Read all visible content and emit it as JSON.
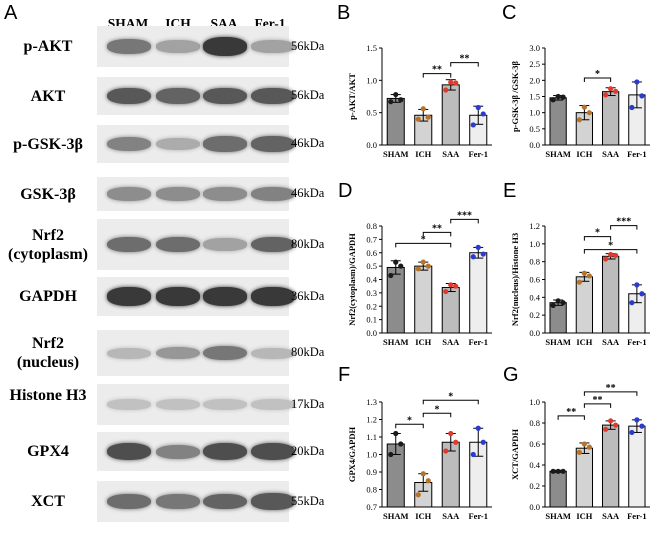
{
  "panel_letters": [
    "A",
    "B",
    "C",
    "D",
    "E",
    "F",
    "G"
  ],
  "western_blot": {
    "lanes": [
      "SHAM",
      "ICH",
      "SAA",
      "Fer-1"
    ],
    "rows": [
      {
        "protein": "p-AKT",
        "kda": "56kDa",
        "intensity": [
          0.55,
          0.35,
          0.85,
          0.35
        ]
      },
      {
        "protein": "AKT",
        "kda": "56kDa",
        "intensity": [
          0.7,
          0.65,
          0.7,
          0.7
        ]
      },
      {
        "protein": "p-GSK-3β",
        "kda": "46kDa",
        "intensity": [
          0.5,
          0.3,
          0.6,
          0.65
        ]
      },
      {
        "protein": "GSK-3β",
        "kda": "46kDa",
        "intensity": [
          0.45,
          0.45,
          0.45,
          0.5
        ]
      },
      {
        "protein": "Nrf2 (cytoplasm)",
        "kda": "80kDa",
        "intensity": [
          0.6,
          0.6,
          0.35,
          0.65
        ]
      },
      {
        "protein": "GAPDH",
        "kda": "36kDa",
        "intensity": [
          0.85,
          0.85,
          0.85,
          0.85
        ]
      },
      {
        "protein": "Nrf2 (nucleus)",
        "kda": "80kDa",
        "intensity": [
          0.25,
          0.4,
          0.55,
          0.25
        ]
      },
      {
        "protein": "Histone H3",
        "kda": "17kDa",
        "intensity": [
          0.2,
          0.2,
          0.2,
          0.2
        ]
      },
      {
        "protein": "GPX4",
        "kda": "20kDa",
        "intensity": [
          0.75,
          0.5,
          0.75,
          0.75
        ]
      },
      {
        "protein": "XCT",
        "kda": "55kDa",
        "intensity": [
          0.6,
          0.55,
          0.65,
          0.7
        ]
      }
    ]
  },
  "group_colors": {
    "bar_fills": [
      "#8c8c8c",
      "#d3d3d3",
      "#bcbcbc",
      "#eeeeee"
    ],
    "dot_colors": [
      "#1a1a1a",
      "#b5742a",
      "#e03a2e",
      "#2b3bd0"
    ]
  },
  "chart_data": [
    {
      "panel": "B",
      "type": "bar",
      "categories": [
        "SHAM",
        "ICH",
        "SAA",
        "Fer-1"
      ],
      "values": [
        0.72,
        0.46,
        0.93,
        0.46
      ],
      "errors": [
        0.06,
        0.09,
        0.08,
        0.14
      ],
      "points": [
        [
          0.67,
          0.78,
          0.7
        ],
        [
          0.4,
          0.56,
          0.43
        ],
        [
          0.85,
          0.97,
          0.96
        ],
        [
          0.31,
          0.58,
          0.48
        ]
      ],
      "ylabel": "p-AKT/AKT",
      "ylim": [
        0,
        1.5
      ],
      "yticks": [
        "0.0",
        "0.5",
        "1.0",
        "1.5"
      ],
      "brackets": [
        {
          "from": 1,
          "to": 2,
          "label": "**"
        },
        {
          "from": 2,
          "to": 3,
          "label": "**"
        }
      ]
    },
    {
      "panel": "C",
      "type": "bar",
      "categories": [
        "SHAM",
        "ICH",
        "SAA",
        "Fer-1"
      ],
      "values": [
        1.46,
        1.0,
        1.65,
        1.55
      ],
      "errors": [
        0.07,
        0.22,
        0.12,
        0.4
      ],
      "points": [
        [
          1.4,
          1.5,
          1.48
        ],
        [
          0.78,
          1.17,
          1.0
        ],
        [
          1.55,
          1.74,
          1.66
        ],
        [
          1.16,
          1.95,
          1.52
        ]
      ],
      "ylabel": "p-GSK-3β /GSK-3β",
      "ylim": [
        0,
        3.0
      ],
      "yticks": [
        "0.0",
        "0.5",
        "1.0",
        "1.5",
        "2.0",
        "2.5",
        "3.0"
      ],
      "brackets": [
        {
          "from": 1,
          "to": 2,
          "label": "*"
        }
      ]
    },
    {
      "panel": "D",
      "type": "bar",
      "categories": [
        "SHAM",
        "ICH",
        "SAA",
        "Fer-1"
      ],
      "values": [
        0.49,
        0.5,
        0.34,
        0.6
      ],
      "errors": [
        0.05,
        0.03,
        0.03,
        0.04
      ],
      "points": [
        [
          0.43,
          0.53,
          0.5
        ],
        [
          0.48,
          0.53,
          0.5
        ],
        [
          0.31,
          0.36,
          0.35
        ],
        [
          0.57,
          0.64,
          0.59
        ]
      ],
      "ylabel": "Nrf2(cytoplasm)/GAPDH",
      "ylim": [
        0,
        0.8
      ],
      "yticks": [
        "0.0",
        "0.1",
        "0.2",
        "0.3",
        "0.4",
        "0.5",
        "0.6",
        "0.7",
        "0.8"
      ],
      "brackets": [
        {
          "from": 0,
          "to": 2,
          "label": "*"
        },
        {
          "from": 1,
          "to": 2,
          "label": "**"
        },
        {
          "from": 2,
          "to": 3,
          "label": "***"
        }
      ]
    },
    {
      "panel": "E",
      "type": "bar",
      "categories": [
        "SHAM",
        "ICH",
        "SAA",
        "Fer-1"
      ],
      "values": [
        0.34,
        0.63,
        0.86,
        0.44
      ],
      "errors": [
        0.03,
        0.05,
        0.03,
        0.1
      ],
      "points": [
        [
          0.31,
          0.36,
          0.34
        ],
        [
          0.57,
          0.67,
          0.64
        ],
        [
          0.83,
          0.88,
          0.87
        ],
        [
          0.34,
          0.54,
          0.44
        ]
      ],
      "ylabel": "Nrf2(nucleus)/Histone H3",
      "ylim": [
        0,
        1.2
      ],
      "yticks": [
        "0.0",
        "0.2",
        "0.4",
        "0.6",
        "0.8",
        "1.0",
        "1.2"
      ],
      "brackets": [
        {
          "from": 1,
          "to": 3,
          "label": "*"
        },
        {
          "from": 1,
          "to": 2,
          "label": "*"
        },
        {
          "from": 2,
          "to": 3,
          "label": "***"
        }
      ]
    },
    {
      "panel": "F",
      "type": "bar",
      "categories": [
        "SHAM",
        "ICH",
        "SAA",
        "Fer-1"
      ],
      "values": [
        1.06,
        0.84,
        1.07,
        1.07
      ],
      "errors": [
        0.06,
        0.05,
        0.05,
        0.08
      ],
      "points": [
        [
          1.0,
          1.12,
          1.06
        ],
        [
          0.77,
          0.89,
          0.85
        ],
        [
          1.02,
          1.12,
          1.07
        ],
        [
          1.0,
          1.15,
          1.07
        ]
      ],
      "ylabel": "GPX4/GAPDH",
      "ylim": [
        0.7,
        1.3
      ],
      "yticks": [
        "0.7",
        "0.8",
        "0.9",
        "1.0",
        "1.1",
        "1.2",
        "1.3"
      ],
      "brackets": [
        {
          "from": 0,
          "to": 1,
          "label": "*"
        },
        {
          "from": 1,
          "to": 2,
          "label": "*"
        },
        {
          "from": 1,
          "to": 3,
          "label": "*"
        }
      ]
    },
    {
      "panel": "G",
      "type": "bar",
      "categories": [
        "SHAM",
        "ICH",
        "SAA",
        "Fer-1"
      ],
      "values": [
        0.34,
        0.56,
        0.78,
        0.77
      ],
      "errors": [
        0.01,
        0.05,
        0.04,
        0.06
      ],
      "points": [
        [
          0.34,
          0.34,
          0.34
        ],
        [
          0.52,
          0.6,
          0.57
        ],
        [
          0.74,
          0.82,
          0.78
        ],
        [
          0.71,
          0.83,
          0.77
        ]
      ],
      "ylabel": "XCT/GAPDH",
      "ylim": [
        0,
        1.0
      ],
      "yticks": [
        "0.0",
        "0.2",
        "0.4",
        "0.6",
        "0.8",
        "1.0"
      ],
      "brackets": [
        {
          "from": 0,
          "to": 1,
          "label": "**"
        },
        {
          "from": 1,
          "to": 2,
          "label": "**"
        },
        {
          "from": 1,
          "to": 3,
          "label": "**"
        }
      ]
    }
  ]
}
